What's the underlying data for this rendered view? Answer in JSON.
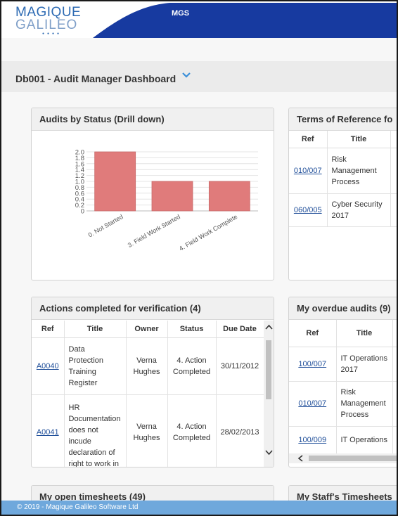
{
  "header": {
    "logo_line1": "MAGIQUE",
    "logo_line2": "GALILEO",
    "logo_dots": "●●●●",
    "org": "MGS"
  },
  "page": {
    "title": "Db001 - Audit Manager Dashboard"
  },
  "colors": {
    "header_blue": "#173aa0",
    "bar_fill": "#e07b7b",
    "link": "#1f4e99",
    "footer": "#6fa8dc"
  },
  "panels": {
    "audits_by_status": {
      "title": "Audits by Status (Drill down)"
    },
    "terms_of_reference": {
      "title": "Terms of Reference fo",
      "columns": [
        "Ref",
        "Title"
      ],
      "rows": [
        {
          "ref": "010/007",
          "title": [
            "Risk",
            "Management",
            "Process"
          ]
        },
        {
          "ref": "060/005",
          "title": [
            "Cyber Security",
            "2017"
          ]
        }
      ]
    },
    "actions_completed": {
      "title": "Actions completed for verification (4)",
      "columns": [
        "Ref",
        "Title",
        "Owner",
        "Status",
        "Due Date"
      ],
      "rows": [
        {
          "ref": "A0040",
          "title": [
            "Data",
            "Protection",
            "Training",
            "Register"
          ],
          "owner": [
            "Verna",
            "Hughes"
          ],
          "status": [
            "4. Action",
            "Completed"
          ],
          "due": "30/11/2012"
        },
        {
          "ref": "A0041",
          "title": [
            "HR",
            "Documentation",
            "does not",
            "incude",
            "declaration of",
            "right to work in"
          ],
          "owner": [
            "Verna",
            "Hughes"
          ],
          "status": [
            "4. Action",
            "Completed"
          ],
          "due": "28/02/2013"
        }
      ]
    },
    "overdue_audits": {
      "title": "My overdue audits (9)",
      "columns": [
        "Ref",
        "Title"
      ],
      "rows": [
        {
          "ref": "100/007",
          "title": [
            "IT Operations",
            "2017"
          ]
        },
        {
          "ref": "010/007",
          "title": [
            "Risk",
            "Management",
            "Process"
          ]
        },
        {
          "ref": "100/009",
          "title": [
            "IT Operations"
          ]
        }
      ]
    },
    "open_timesheets": {
      "title": "My open timesheets (49)"
    },
    "staff_timesheets": {
      "title": "My Staff's Timesheets"
    }
  },
  "chart_data": {
    "type": "bar",
    "categories": [
      "0. Not Started",
      "3. Field Work Started",
      "4. Field Work Complete"
    ],
    "values": [
      2,
      1,
      1
    ],
    "ylim": [
      0,
      2.0
    ],
    "yticks": [
      "0",
      "0.2",
      "0.4",
      "0.6",
      "0.8",
      "1.0",
      "1.2",
      "1.4",
      "1.6",
      "1.8",
      "2.0"
    ],
    "grid": true,
    "bar_color": "#e07b7b"
  },
  "footer": {
    "text": "© 2019 - Magique Galileo Software Ltd"
  }
}
